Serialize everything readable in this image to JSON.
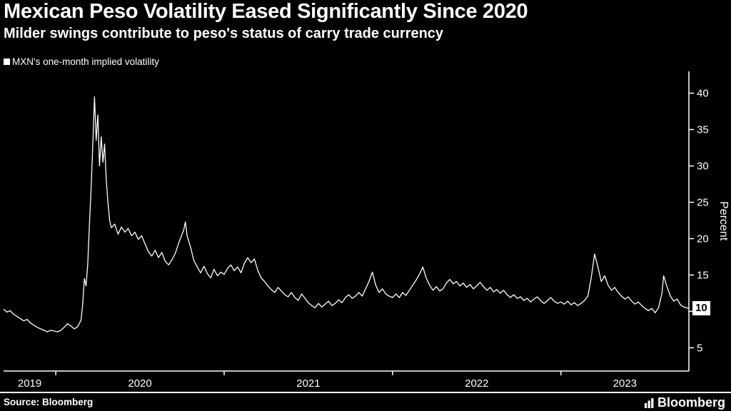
{
  "header": {
    "title": "Mexican Peso Volatility Eased Significantly Since 2020",
    "subtitle": "Milder swings contribute to peso's status of carry trade currency"
  },
  "legend": {
    "swatch_color": "#ffffff",
    "label": "MXN's one-month implied volatility"
  },
  "footer": {
    "source": "Source: Bloomberg",
    "logo": "Bloomberg"
  },
  "colors": {
    "background": "#000000",
    "foreground": "#ffffff",
    "line": "#ffffff",
    "last_value_box_bg": "#ffffff",
    "last_value_box_text": "#000000"
  },
  "chart_data": {
    "type": "line",
    "title": "Mexican Peso Volatility Eased Significantly Since 2020",
    "subtitle": "Milder swings contribute to peso's status of carry trade currency",
    "xlabel": "",
    "ylabel": "Percent",
    "grid": false,
    "legend_position": "top-left",
    "y_ticks": [
      5,
      10,
      15,
      20,
      25,
      30,
      35,
      40
    ],
    "ylim": [
      1.8,
      43
    ],
    "xlim": [
      2019.69,
      2023.76
    ],
    "x_ticks": [
      2020,
      2021,
      2022,
      2023
    ],
    "x_labels": [
      {
        "label": "2019",
        "t": 2019.845
      },
      {
        "label": "2020",
        "t": 2020.5
      },
      {
        "label": "2021",
        "t": 2021.5
      },
      {
        "label": "2022",
        "t": 2022.5
      },
      {
        "label": "2023",
        "t": 2023.38
      }
    ],
    "last_value": 10.4,
    "last_value_label": "10",
    "series": [
      {
        "name": "MXN's one-month implied volatility",
        "color": "#ffffff",
        "points": [
          [
            2019.69,
            10.3
          ],
          [
            2019.71,
            9.9
          ],
          [
            2019.73,
            10.1
          ],
          [
            2019.75,
            9.6
          ],
          [
            2019.77,
            9.3
          ],
          [
            2019.79,
            9.0
          ],
          [
            2019.81,
            8.7
          ],
          [
            2019.83,
            8.9
          ],
          [
            2019.85,
            8.4
          ],
          [
            2019.87,
            8.1
          ],
          [
            2019.89,
            7.8
          ],
          [
            2019.91,
            7.6
          ],
          [
            2019.93,
            7.4
          ],
          [
            2019.95,
            7.2
          ],
          [
            2019.97,
            7.4
          ],
          [
            2019.99,
            7.3
          ],
          [
            2020.01,
            7.2
          ],
          [
            2020.03,
            7.4
          ],
          [
            2020.05,
            7.8
          ],
          [
            2020.07,
            8.3
          ],
          [
            2020.09,
            8.0
          ],
          [
            2020.11,
            7.6
          ],
          [
            2020.13,
            7.9
          ],
          [
            2020.15,
            8.8
          ],
          [
            2020.16,
            11.0
          ],
          [
            2020.17,
            14.5
          ],
          [
            2020.18,
            13.5
          ],
          [
            2020.19,
            16.5
          ],
          [
            2020.2,
            22.0
          ],
          [
            2020.21,
            27.0
          ],
          [
            2020.22,
            33.0
          ],
          [
            2020.23,
            39.5
          ],
          [
            2020.24,
            33.5
          ],
          [
            2020.25,
            37.0
          ],
          [
            2020.26,
            30.0
          ],
          [
            2020.27,
            34.0
          ],
          [
            2020.28,
            30.5
          ],
          [
            2020.29,
            33.0
          ],
          [
            2020.3,
            28.0
          ],
          [
            2020.31,
            25.0
          ],
          [
            2020.32,
            22.5
          ],
          [
            2020.33,
            21.5
          ],
          [
            2020.35,
            22.0
          ],
          [
            2020.37,
            20.6
          ],
          [
            2020.39,
            21.6
          ],
          [
            2020.41,
            20.9
          ],
          [
            2020.43,
            21.4
          ],
          [
            2020.45,
            20.4
          ],
          [
            2020.47,
            20.9
          ],
          [
            2020.49,
            19.9
          ],
          [
            2020.51,
            20.4
          ],
          [
            2020.53,
            19.3
          ],
          [
            2020.55,
            18.2
          ],
          [
            2020.57,
            17.6
          ],
          [
            2020.59,
            18.4
          ],
          [
            2020.61,
            17.4
          ],
          [
            2020.63,
            18.1
          ],
          [
            2020.65,
            16.9
          ],
          [
            2020.67,
            16.4
          ],
          [
            2020.69,
            17.1
          ],
          [
            2020.71,
            18.0
          ],
          [
            2020.73,
            19.4
          ],
          [
            2020.75,
            20.6
          ],
          [
            2020.76,
            21.2
          ],
          [
            2020.77,
            22.3
          ],
          [
            2020.78,
            20.4
          ],
          [
            2020.8,
            18.9
          ],
          [
            2020.82,
            17.0
          ],
          [
            2020.84,
            16.1
          ],
          [
            2020.86,
            15.3
          ],
          [
            2020.88,
            16.2
          ],
          [
            2020.9,
            15.2
          ],
          [
            2020.92,
            14.6
          ],
          [
            2020.94,
            15.8
          ],
          [
            2020.96,
            14.9
          ],
          [
            2020.98,
            15.4
          ],
          [
            2021.0,
            15.1
          ],
          [
            2021.02,
            15.9
          ],
          [
            2021.04,
            16.4
          ],
          [
            2021.06,
            15.6
          ],
          [
            2021.08,
            16.1
          ],
          [
            2021.1,
            15.3
          ],
          [
            2021.12,
            16.6
          ],
          [
            2021.14,
            17.4
          ],
          [
            2021.16,
            16.7
          ],
          [
            2021.18,
            17.2
          ],
          [
            2021.2,
            15.6
          ],
          [
            2021.22,
            14.6
          ],
          [
            2021.24,
            14.1
          ],
          [
            2021.26,
            13.5
          ],
          [
            2021.28,
            13.0
          ],
          [
            2021.3,
            12.6
          ],
          [
            2021.32,
            13.3
          ],
          [
            2021.34,
            12.8
          ],
          [
            2021.36,
            12.3
          ],
          [
            2021.38,
            12.0
          ],
          [
            2021.4,
            12.6
          ],
          [
            2021.42,
            11.9
          ],
          [
            2021.44,
            11.5
          ],
          [
            2021.46,
            12.4
          ],
          [
            2021.48,
            11.8
          ],
          [
            2021.5,
            11.2
          ],
          [
            2021.52,
            10.8
          ],
          [
            2021.54,
            10.5
          ],
          [
            2021.56,
            11.1
          ],
          [
            2021.58,
            10.6
          ],
          [
            2021.6,
            11.0
          ],
          [
            2021.62,
            11.4
          ],
          [
            2021.64,
            10.8
          ],
          [
            2021.66,
            11.1
          ],
          [
            2021.68,
            11.6
          ],
          [
            2021.7,
            11.2
          ],
          [
            2021.72,
            11.9
          ],
          [
            2021.74,
            12.3
          ],
          [
            2021.76,
            11.8
          ],
          [
            2021.78,
            12.1
          ],
          [
            2021.8,
            12.6
          ],
          [
            2021.82,
            12.1
          ],
          [
            2021.84,
            13.1
          ],
          [
            2021.86,
            14.1
          ],
          [
            2021.88,
            15.4
          ],
          [
            2021.9,
            13.6
          ],
          [
            2021.92,
            12.6
          ],
          [
            2021.94,
            13.1
          ],
          [
            2021.96,
            12.4
          ],
          [
            2021.98,
            12.1
          ],
          [
            2022.0,
            11.9
          ],
          [
            2022.02,
            12.4
          ],
          [
            2022.04,
            11.9
          ],
          [
            2022.06,
            12.6
          ],
          [
            2022.08,
            12.2
          ],
          [
            2022.1,
            12.9
          ],
          [
            2022.12,
            13.6
          ],
          [
            2022.14,
            14.3
          ],
          [
            2022.16,
            15.1
          ],
          [
            2022.18,
            16.1
          ],
          [
            2022.2,
            14.6
          ],
          [
            2022.22,
            13.6
          ],
          [
            2022.24,
            12.9
          ],
          [
            2022.26,
            13.4
          ],
          [
            2022.28,
            12.8
          ],
          [
            2022.3,
            13.1
          ],
          [
            2022.32,
            13.9
          ],
          [
            2022.34,
            14.4
          ],
          [
            2022.36,
            13.8
          ],
          [
            2022.38,
            14.1
          ],
          [
            2022.4,
            13.5
          ],
          [
            2022.42,
            13.9
          ],
          [
            2022.44,
            13.3
          ],
          [
            2022.46,
            13.7
          ],
          [
            2022.48,
            13.1
          ],
          [
            2022.5,
            13.5
          ],
          [
            2022.52,
            14.0
          ],
          [
            2022.54,
            13.4
          ],
          [
            2022.56,
            12.9
          ],
          [
            2022.58,
            13.3
          ],
          [
            2022.6,
            12.7
          ],
          [
            2022.62,
            13.0
          ],
          [
            2022.64,
            12.5
          ],
          [
            2022.66,
            12.9
          ],
          [
            2022.68,
            12.3
          ],
          [
            2022.7,
            11.9
          ],
          [
            2022.72,
            12.3
          ],
          [
            2022.74,
            11.8
          ],
          [
            2022.76,
            12.0
          ],
          [
            2022.78,
            11.5
          ],
          [
            2022.8,
            11.8
          ],
          [
            2022.82,
            11.3
          ],
          [
            2022.84,
            11.7
          ],
          [
            2022.86,
            12.0
          ],
          [
            2022.88,
            11.5
          ],
          [
            2022.9,
            11.1
          ],
          [
            2022.92,
            11.5
          ],
          [
            2022.94,
            11.9
          ],
          [
            2022.96,
            11.4
          ],
          [
            2022.98,
            11.1
          ],
          [
            2023.0,
            11.3
          ],
          [
            2023.02,
            11.0
          ],
          [
            2023.04,
            11.4
          ],
          [
            2023.06,
            10.9
          ],
          [
            2023.08,
            11.2
          ],
          [
            2023.1,
            10.8
          ],
          [
            2023.12,
            11.1
          ],
          [
            2023.14,
            11.5
          ],
          [
            2023.16,
            12.1
          ],
          [
            2023.18,
            14.6
          ],
          [
            2023.2,
            17.9
          ],
          [
            2023.22,
            16.1
          ],
          [
            2023.24,
            14.1
          ],
          [
            2023.26,
            14.9
          ],
          [
            2023.28,
            13.6
          ],
          [
            2023.3,
            12.9
          ],
          [
            2023.32,
            13.3
          ],
          [
            2023.34,
            12.6
          ],
          [
            2023.36,
            12.1
          ],
          [
            2023.38,
            11.7
          ],
          [
            2023.4,
            12.0
          ],
          [
            2023.42,
            11.4
          ],
          [
            2023.44,
            11.0
          ],
          [
            2023.46,
            11.3
          ],
          [
            2023.48,
            10.8
          ],
          [
            2023.5,
            10.4
          ],
          [
            2023.52,
            10.1
          ],
          [
            2023.54,
            10.4
          ],
          [
            2023.56,
            9.8
          ],
          [
            2023.58,
            10.5
          ],
          [
            2023.6,
            12.5
          ],
          [
            2023.61,
            14.9
          ],
          [
            2023.63,
            13.4
          ],
          [
            2023.65,
            12.1
          ],
          [
            2023.67,
            11.4
          ],
          [
            2023.69,
            11.7
          ],
          [
            2023.71,
            10.9
          ],
          [
            2023.73,
            10.6
          ],
          [
            2023.76,
            10.4
          ]
        ]
      }
    ]
  }
}
